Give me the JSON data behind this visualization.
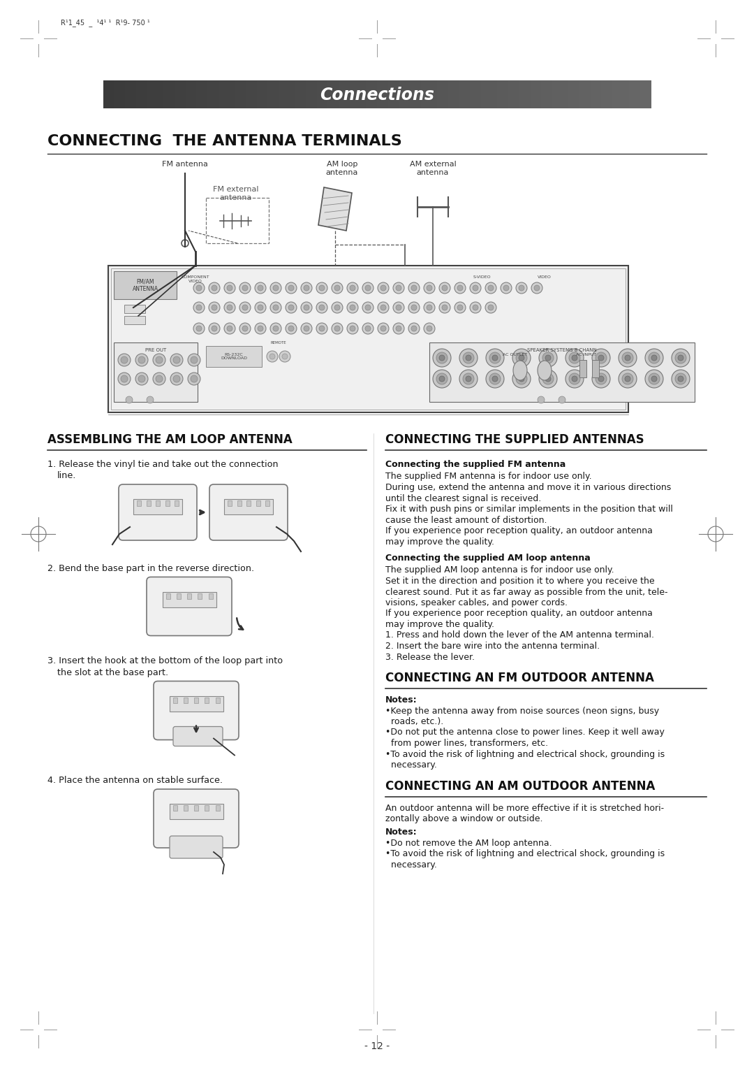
{
  "page_bg": "#ffffff",
  "header_bar_color_left": "#3a3a3a",
  "header_bar_color_right": "#686868",
  "header_text": "Connections",
  "header_text_color": "#ffffff",
  "main_title": "CONNECTING  THE ANTENNA TERMINALS",
  "section1_title": "ASSEMBLING THE AM LOOP ANTENNA",
  "section2_title": "CONNECTING THE SUPPLIED ANTENNAS",
  "section3_title": "CONNECTING AN FM OUTDOOR ANTENNA",
  "section4_title": "CONNECTING AN AM OUTDOOR ANTENNA",
  "supplied_fm_title": "Connecting the supplied FM antenna",
  "supplied_fm_lines": [
    "The supplied FM antenna is for indoor use only.",
    "During use, extend the antenna and move it in various directions",
    "until the clearest signal is received.",
    "Fix it with push pins or similar implements in the position that will",
    "cause the least amount of distortion.",
    "If you experience poor reception quality, an outdoor antenna",
    "may improve the quality."
  ],
  "supplied_am_title": "Connecting the supplied AM loop antenna",
  "supplied_am_lines": [
    "The supplied AM loop antenna is for indoor use only.",
    "Set it in the direction and position it to where you receive the",
    "clearest sound. Put it as far away as possible from the unit, tele-",
    "visions, speaker cables, and power cords.",
    "If you experience poor reception quality, an outdoor antenna",
    "may improve the quality.",
    "1. Press and hold down the lever of the AM antenna terminal.",
    "2. Insert the bare wire into the antenna terminal.",
    "3. Release the lever."
  ],
  "fm_outdoor_lines": [
    "Notes:",
    "•Keep the antenna away from noise sources (neon signs, busy",
    "  roads, etc.).",
    "•Do not put the antenna close to power lines. Keep it well away",
    "  from power lines, transformers, etc.",
    "•To avoid the risk of lightning and electrical shock, grounding is",
    "  necessary."
  ],
  "am_outdoor_intro": [
    "An outdoor antenna will be more effective if it is stretched hori-",
    "zontally above a window or outside."
  ],
  "am_outdoor_notes": [
    "Notes:",
    "•Do not remove the AM loop antenna.",
    "•To avoid the risk of lightning and electrical shock, grounding is",
    "  necessary."
  ],
  "page_number": "- 12 -",
  "header_top_text": "R¹1_45  _  ¹4¹ ¹  R¹9- 750 ¹",
  "fm_label": "FM antenna",
  "fm_ext_label": "FM external\nantenna",
  "am_loop_label": "AM loop\nantenna",
  "am_ext_label": "AM external\nantenna"
}
